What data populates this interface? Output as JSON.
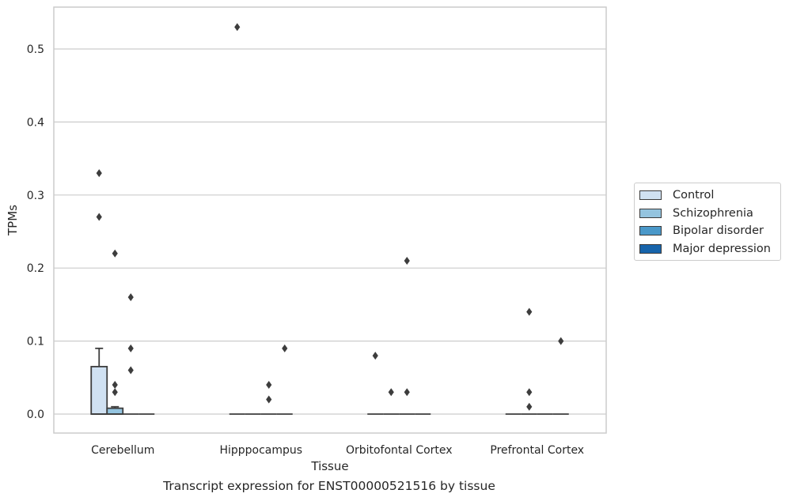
{
  "caption": "Transcript expression for ENST00000521516 by tissue",
  "chart_data": {
    "type": "box",
    "title": "",
    "xlabel": "Tissue",
    "ylabel": "TPMs",
    "ylim": [
      -0.026,
      0.556
    ],
    "yticks": [
      0.0,
      0.1,
      0.2,
      0.3,
      0.4,
      0.5
    ],
    "ytick_labels": [
      "0.0",
      "0.1",
      "0.2",
      "0.3",
      "0.4",
      "0.5"
    ],
    "grid": "horizontal",
    "legend_position": "right",
    "categories": [
      "Cerebellum",
      "Hipppocampus",
      "Orbitofontal Cortex",
      "Prefrontal Cortex"
    ],
    "series": [
      {
        "name": "Control",
        "color": "#d0e1f2",
        "boxes": [
          {
            "q1": 0.0,
            "median": 0.0,
            "q3": 0.065,
            "whisker_low": 0.0,
            "whisker_high": 0.09,
            "outliers": [
              0.33,
              0.27
            ]
          },
          {
            "q1": 0.0,
            "median": 0.0,
            "q3": 0.0,
            "whisker_low": 0.0,
            "whisker_high": 0.0,
            "outliers": [
              0.53
            ]
          },
          {
            "q1": 0.0,
            "median": 0.0,
            "q3": 0.0,
            "whisker_low": 0.0,
            "whisker_high": 0.0,
            "outliers": [
              0.08
            ]
          },
          {
            "q1": 0.0,
            "median": 0.0,
            "q3": 0.0,
            "whisker_low": 0.0,
            "whisker_high": 0.0,
            "outliers": []
          }
        ]
      },
      {
        "name": "Schizophrenia",
        "color": "#94c4df",
        "boxes": [
          {
            "q1": 0.0,
            "median": 0.0,
            "q3": 0.008,
            "whisker_low": 0.0,
            "whisker_high": 0.01,
            "outliers": [
              0.22,
              0.04,
              0.03
            ]
          },
          {
            "q1": 0.0,
            "median": 0.0,
            "q3": 0.0,
            "whisker_low": 0.0,
            "whisker_high": 0.0,
            "outliers": []
          },
          {
            "q1": 0.0,
            "median": 0.0,
            "q3": 0.0,
            "whisker_low": 0.0,
            "whisker_high": 0.0,
            "outliers": [
              0.03
            ]
          },
          {
            "q1": 0.0,
            "median": 0.0,
            "q3": 0.0,
            "whisker_low": 0.0,
            "whisker_high": 0.0,
            "outliers": [
              0.14,
              0.03,
              0.01
            ]
          }
        ]
      },
      {
        "name": "Bipolar disorder",
        "color": "#4a98c9",
        "boxes": [
          {
            "q1": 0.0,
            "median": 0.0,
            "q3": 0.0,
            "whisker_low": 0.0,
            "whisker_high": 0.0,
            "outliers": [
              0.16,
              0.09,
              0.06
            ]
          },
          {
            "q1": 0.0,
            "median": 0.0,
            "q3": 0.0,
            "whisker_low": 0.0,
            "whisker_high": 0.0,
            "outliers": [
              0.04,
              0.02
            ]
          },
          {
            "q1": 0.0,
            "median": 0.0,
            "q3": 0.0,
            "whisker_low": 0.0,
            "whisker_high": 0.0,
            "outliers": [
              0.21,
              0.03
            ]
          },
          {
            "q1": 0.0,
            "median": 0.0,
            "q3": 0.0,
            "whisker_low": 0.0,
            "whisker_high": 0.0,
            "outliers": []
          }
        ]
      },
      {
        "name": "Major depression",
        "color": "#1764ab",
        "boxes": [
          {
            "q1": 0.0,
            "median": 0.0,
            "q3": 0.0,
            "whisker_low": 0.0,
            "whisker_high": 0.0,
            "outliers": []
          },
          {
            "q1": 0.0,
            "median": 0.0,
            "q3": 0.0,
            "whisker_low": 0.0,
            "whisker_high": 0.0,
            "outliers": [
              0.09
            ]
          },
          {
            "q1": 0.0,
            "median": 0.0,
            "q3": 0.0,
            "whisker_low": 0.0,
            "whisker_high": 0.0,
            "outliers": []
          },
          {
            "q1": 0.0,
            "median": 0.0,
            "q3": 0.0,
            "whisker_low": 0.0,
            "whisker_high": 0.0,
            "outliers": [
              0.1
            ]
          }
        ]
      }
    ]
  }
}
